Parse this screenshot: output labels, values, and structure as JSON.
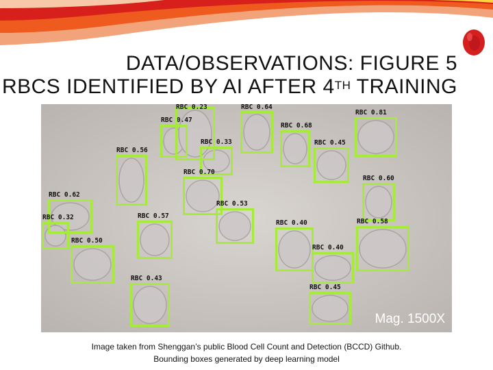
{
  "slide": {
    "title_line1": "DATA/OBSERVATIONS: FIGURE 5",
    "title_line2_prefix": "RBCS IDENTIFIED BY AI AFTER 4",
    "title_line2_sup": "TH",
    "title_line2_suffix": " TRAINING",
    "caption_line1": "Image taken from Shenggan’s public Blood Cell Count and Detection (BCCD) Github.",
    "caption_line2": "Bounding boxes generated by deep learning model",
    "magnification": "Mag. 1500X"
  },
  "colors": {
    "box": "#a6ea3a",
    "background": "#cfcac5"
  },
  "detections": [
    {
      "label": "RBC 0.47"
    },
    {
      "label": "RBC 0.23"
    },
    {
      "label": "RBC 0.33"
    },
    {
      "label": "RBC 0.64"
    },
    {
      "label": "RBC 0.68"
    },
    {
      "label": "RBC 0.45"
    },
    {
      "label": "RBC 0.81"
    },
    {
      "label": "RBC 0.56"
    },
    {
      "label": "RBC 0.70"
    },
    {
      "label": "RBC 0.60"
    },
    {
      "label": "RBC 0.62"
    },
    {
      "label": "RBC 0.53"
    },
    {
      "label": "RBC 0.32"
    },
    {
      "label": "RBC 0.57"
    },
    {
      "label": "RBC 0.40"
    },
    {
      "label": "RBC 0.58"
    },
    {
      "label": "RBC 0.50"
    },
    {
      "label": "RBC 0.40"
    },
    {
      "label": "RBC 0.43"
    },
    {
      "label": "RBC 0.45"
    }
  ]
}
